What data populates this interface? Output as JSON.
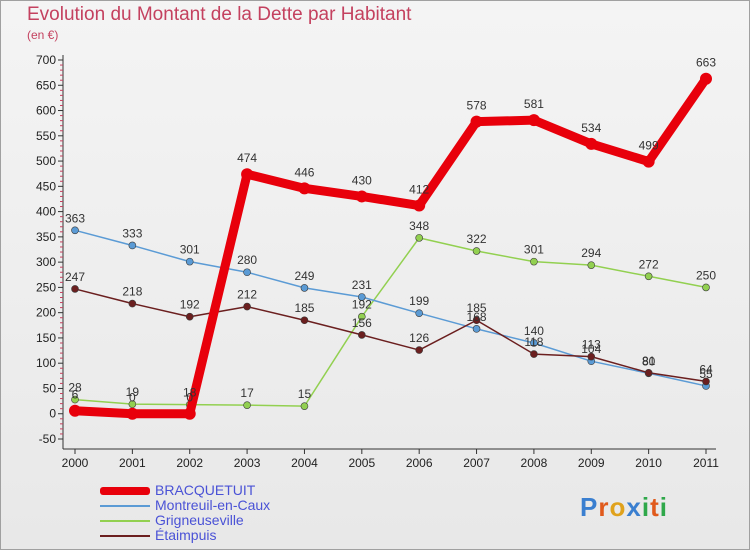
{
  "title": "Evolution du Montant de la Dette par Habitant",
  "subtitle": "(en €)",
  "logo": {
    "text": "Proxiti",
    "letters": [
      "P",
      "r",
      "o",
      "x",
      "i",
      "t",
      "i"
    ],
    "colors": [
      "#3a7fd0",
      "#e05a1c",
      "#e0a21c",
      "#3a7fd0",
      "#2fa84a",
      "#e05a1c",
      "#2fa84a"
    ]
  },
  "chart_data": {
    "type": "line",
    "title": "Evolution du Montant de la Dette par Habitant",
    "subtitle": "(en €)",
    "xlabel": "",
    "ylabel": "",
    "x": [
      "2000",
      "2001",
      "2002",
      "2003",
      "2004",
      "2005",
      "2006",
      "2007",
      "2008",
      "2009",
      "2010",
      "2011"
    ],
    "ylim": [
      -50,
      700
    ],
    "yticks": [
      -50,
      0,
      50,
      100,
      150,
      200,
      250,
      300,
      350,
      400,
      450,
      500,
      550,
      600,
      650,
      700
    ],
    "grid": false,
    "legend_position": "bottom-left",
    "series": [
      {
        "name": "BRACQUETUIT",
        "color": "#e8000b",
        "values": [
          6,
          0,
          0,
          474,
          446,
          430,
          412,
          578,
          581,
          534,
          499,
          663
        ],
        "labels": [
          "6",
          "0",
          "0",
          "474",
          "446",
          "430",
          "412",
          "578",
          "581",
          "534",
          "499",
          "663"
        ]
      },
      {
        "name": "Montreuil-en-Caux",
        "color": "#5b9bd5",
        "values": [
          363,
          333,
          301,
          280,
          249,
          231,
          199,
          168,
          140,
          104,
          80,
          55
        ],
        "labels": [
          "363",
          "333",
          "301",
          "280",
          "249",
          "231",
          "199",
          "168",
          "140",
          "104",
          "80",
          "55"
        ]
      },
      {
        "name": "Grigneuseville",
        "color": "#92d050",
        "values": [
          28,
          19,
          18,
          17,
          15,
          192,
          348,
          322,
          301,
          294,
          272,
          250
        ],
        "labels": [
          "28",
          "19",
          "18",
          "17",
          "15",
          "192",
          "348",
          "322",
          "301",
          "294",
          "272",
          "250"
        ]
      },
      {
        "name": "Étaimpuis",
        "color": "#6b1f1f",
        "values": [
          247,
          218,
          192,
          212,
          185,
          156,
          126,
          185,
          118,
          113,
          81,
          64
        ],
        "labels": [
          "247",
          "218",
          "192",
          "212",
          "185",
          "156",
          "126",
          "185",
          "118",
          "113",
          "81",
          "64"
        ]
      }
    ]
  }
}
